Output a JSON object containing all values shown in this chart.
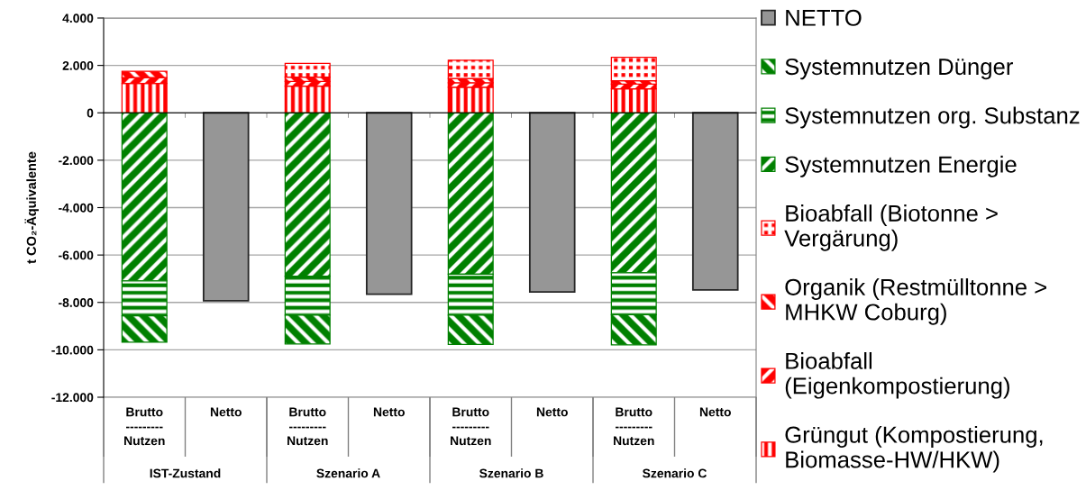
{
  "chart_data": {
    "type": "bar",
    "ylabel": "t CO₂-Äquivalente",
    "categories": [
      "Brutto\n---------\nNutzen",
      "Netto",
      "Brutto\n---------\nNutzen",
      "Netto",
      "Brutto\n---------\nNutzen",
      "Netto",
      "Brutto\n---------\nNutzen",
      "Netto"
    ],
    "annotations": [
      "IST-Zustand",
      "Szenario A",
      "Szenario B",
      "Szenario C"
    ],
    "stacked": true,
    "series": [
      {
        "name": "Grüngut (Kompostierung, Biomasse-HW/HKW)",
        "color": "#ff0000",
        "values": [
          1240,
          null,
          1130,
          null,
          1080,
          null,
          1010,
          null
        ]
      },
      {
        "name": "Bioabfall (Eigenkompostierung)",
        "color": "#ff0000",
        "values": [
          250,
          null,
          200,
          null,
          190,
          null,
          200,
          null
        ]
      },
      {
        "name": "Organik (Restmülltonne > MHKW Coburg)",
        "color": "#ff0000",
        "values": [
          260,
          null,
          180,
          null,
          180,
          null,
          140,
          null
        ]
      },
      {
        "name": "Bioabfall (Biotonne > Vergärung)",
        "color": "#ff0000",
        "values": [
          null,
          null,
          580,
          null,
          770,
          null,
          990,
          null
        ]
      },
      {
        "name": "Systemnutzen Energie",
        "color": "#008000",
        "values": [
          -7090,
          null,
          -6890,
          null,
          -6810,
          null,
          -6750,
          null
        ]
      },
      {
        "name": "Systemnutzen org. Substanz",
        "color": "#008000",
        "values": [
          -1480,
          null,
          -1650,
          null,
          -1730,
          null,
          -1770,
          null
        ]
      },
      {
        "name": "Systemnutzen Dünger",
        "color": "#008000",
        "values": [
          -1110,
          null,
          -1210,
          null,
          -1230,
          null,
          -1270,
          null
        ]
      },
      {
        "name": "NETTO",
        "color": "#969696",
        "values": [
          null,
          -7930,
          null,
          -7650,
          null,
          -7560,
          null,
          -7470
        ]
      }
    ],
    "ylim": [
      -12000,
      4000
    ],
    "yticks": [
      {
        "value": -12000,
        "label": "-12.000"
      },
      {
        "value": -10000,
        "label": "-10.000"
      },
      {
        "value": -8000,
        "label": "-8.000"
      },
      {
        "value": -6000,
        "label": "-6.000"
      },
      {
        "value": -4000,
        "label": "-4.000"
      },
      {
        "value": -2000,
        "label": "-2.000"
      },
      0,
      {
        "value": 2000,
        "label": "2.000"
      },
      {
        "value": 4000,
        "label": "4.000"
      }
    ],
    "grid": "y",
    "legend": "right"
  }
}
